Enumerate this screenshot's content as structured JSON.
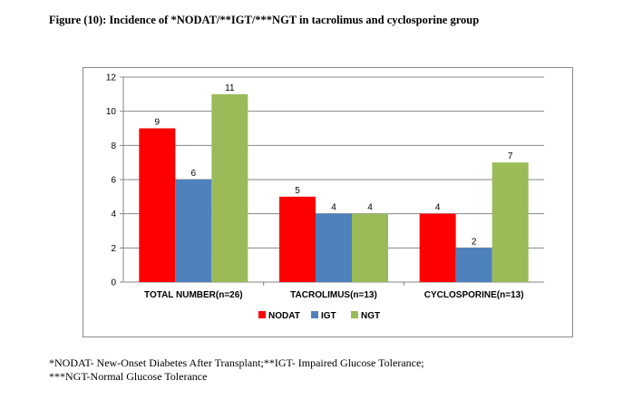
{
  "figure": {
    "title": "Figure (10): Incidence of *NODAT/**IGT/***NGT in tacrolimus and cyclosporine group"
  },
  "chart_data": {
    "type": "bar",
    "categories": [
      "TOTAL NUMBER(n=26)",
      "TACROLIMUS(n=13)",
      "CYCLOSPORINE(n=13)"
    ],
    "series": [
      {
        "name": "NODAT",
        "values": [
          9,
          5,
          4
        ],
        "color": "#ff0000"
      },
      {
        "name": "IGT",
        "values": [
          6,
          4,
          2
        ],
        "color": "#4f81bd"
      },
      {
        "name": "NGT",
        "values": [
          11,
          4,
          7
        ],
        "color": "#9bbb59"
      }
    ],
    "ylim": [
      0,
      12
    ],
    "yticks": [
      0,
      2,
      4,
      6,
      8,
      10,
      12
    ],
    "grid": true,
    "legend_position": "bottom",
    "xlabel": "",
    "ylabel": ""
  },
  "footnote": {
    "line1": "*NODAT- New-Onset Diabetes After Transplant;**IGT- Impaired Glucose Tolerance;",
    "line2": "***NGT-Normal Glucose Tolerance"
  }
}
